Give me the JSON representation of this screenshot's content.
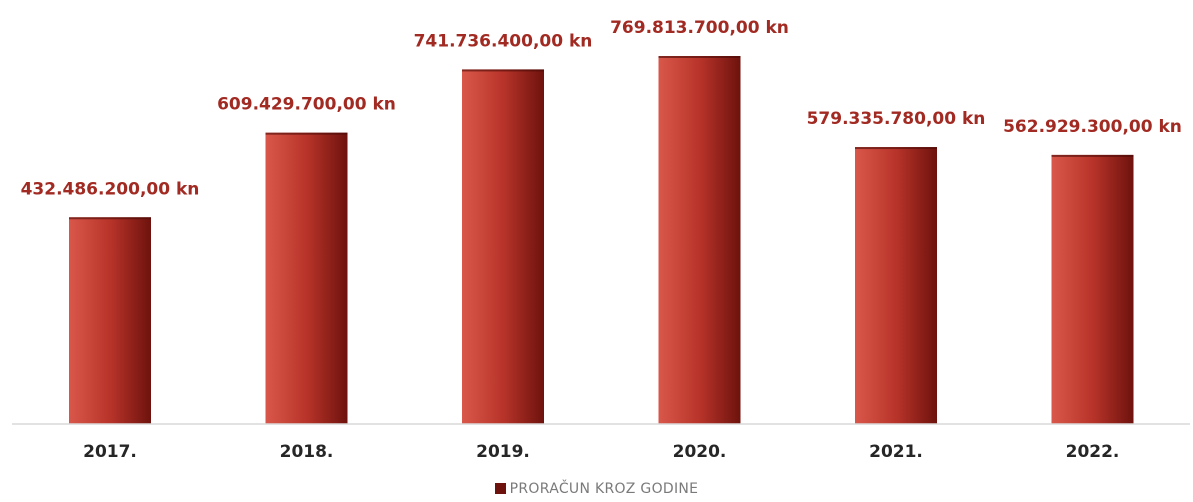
{
  "chart_data": {
    "type": "bar",
    "categories": [
      "2017.",
      "2018.",
      "2019.",
      "2020.",
      "2021.",
      "2022."
    ],
    "series": [
      {
        "name": "PRORAČUN KROZ GODINE",
        "values": [
          432486200.0,
          609429700.0,
          741736400.0,
          769813700.0,
          579335780.0,
          562929300.0
        ],
        "labels": [
          "432.486.200,00 kn",
          "609.429.700,00 kn",
          "741.736.400,00 kn",
          "769.813.700,00 kn",
          "579.335.780,00 kn",
          "562.929.300,00 kn"
        ]
      }
    ],
    "ylim": [
      0,
      769813700.0
    ],
    "grid": false,
    "legend_position": "bottom-center",
    "colors": {
      "bar_light": "#d9574a",
      "bar_dark": "#6e120d",
      "label": "#a12a22",
      "axis": "#d9d9d9"
    }
  }
}
